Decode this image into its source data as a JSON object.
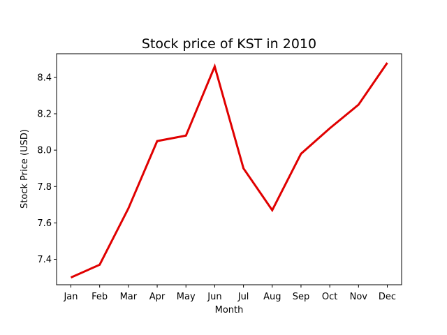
{
  "chart_data": {
    "type": "line",
    "title": "Stock price of KST in 2010",
    "xlabel": "Month",
    "ylabel": "Stock Price (USD)",
    "categories": [
      "Jan",
      "Feb",
      "Mar",
      "Apr",
      "May",
      "Jun",
      "Jul",
      "Aug",
      "Sep",
      "Oct",
      "Nov",
      "Dec"
    ],
    "series": [
      {
        "values": [
          7.3,
          7.37,
          7.68,
          8.05,
          8.08,
          8.46,
          7.9,
          7.67,
          7.98,
          8.12,
          8.25,
          8.48
        ],
        "color": "#e00000"
      }
    ],
    "yticks": [
      7.4,
      7.6,
      7.8,
      8.0,
      8.2,
      8.4
    ],
    "ytick_labels": [
      "7.4",
      "7.6",
      "7.8",
      "8.0",
      "8.2",
      "8.4"
    ],
    "ylim": [
      7.26,
      8.53
    ],
    "grid": false,
    "legend": "none"
  }
}
